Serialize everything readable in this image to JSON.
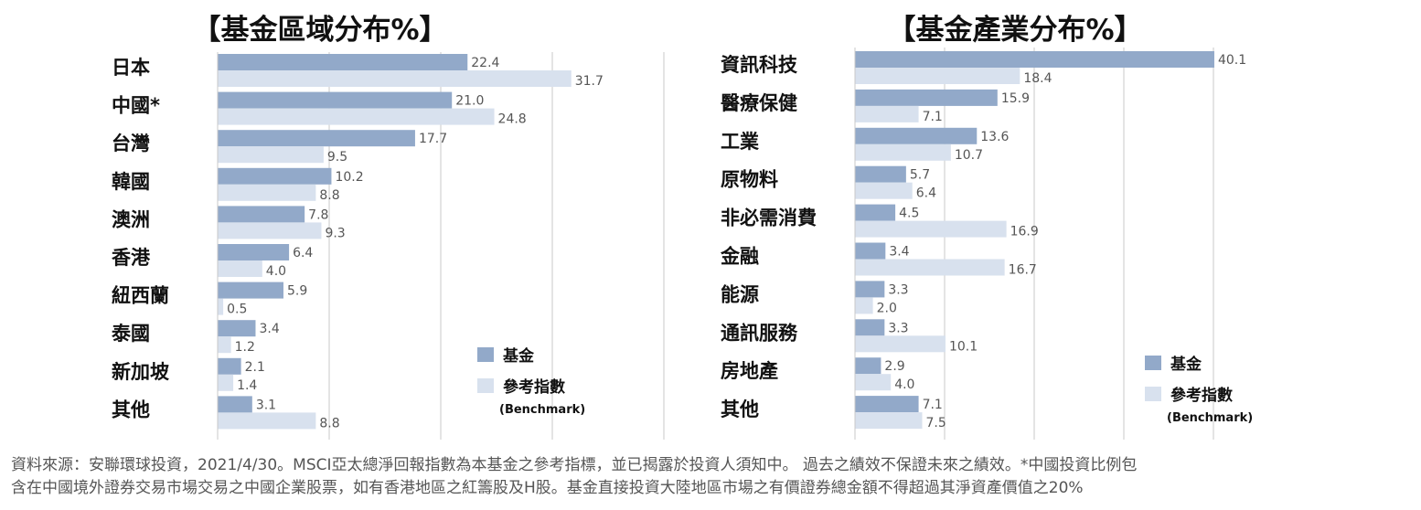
{
  "colors": {
    "fund": "#92a9c9",
    "benchmark": "#d8e1ee",
    "grid": "#c8c8c8",
    "label": "#111111",
    "value": "#555555"
  },
  "legend": {
    "fund": "基金",
    "benchmark": "參考指數",
    "benchmark_sub": "(Benchmark)"
  },
  "chart_data": [
    {
      "type": "bar",
      "orientation": "horizontal",
      "title": "【基金區域分布%】",
      "categories": [
        "日本",
        "中國*",
        "台灣",
        "韓國",
        "澳洲",
        "香港",
        "紐西蘭",
        "泰國",
        "新加坡",
        "其他"
      ],
      "series": [
        {
          "name": "基金",
          "values": [
            22.4,
            21.0,
            17.7,
            10.2,
            7.8,
            6.4,
            5.9,
            3.4,
            2.1,
            3.1
          ]
        },
        {
          "name": "參考指數",
          "values": [
            31.7,
            24.8,
            9.5,
            8.8,
            9.3,
            4.0,
            0.5,
            1.2,
            1.4,
            8.8
          ]
        }
      ],
      "xlim": [
        0,
        40
      ],
      "grid": true,
      "legend_position": "bottom-right"
    },
    {
      "type": "bar",
      "orientation": "horizontal",
      "title": "【基金產業分布%】",
      "categories": [
        "資訊科技",
        "醫療保健",
        "工業",
        "原物料",
        "非必需消費",
        "金融",
        "能源",
        "通訊服務",
        "房地產",
        "其他"
      ],
      "series": [
        {
          "name": "基金",
          "values": [
            40.1,
            15.9,
            13.6,
            5.7,
            4.5,
            3.4,
            3.3,
            3.3,
            2.9,
            7.1
          ]
        },
        {
          "name": "參考指數",
          "values": [
            18.4,
            7.1,
            10.7,
            6.4,
            16.9,
            16.7,
            2.0,
            10.1,
            4.0,
            7.5
          ]
        }
      ],
      "xlim": [
        0,
        40
      ],
      "grid": true,
      "legend_position": "bottom-right"
    }
  ],
  "footnote": {
    "line1": "資料來源：安聯環球投資，2021/4/30。MSCI亞太總淨回報指數為本基金之參考指標，並已揭露於投資人須知中。 過去之績效不保證未來之績效。*中國投資比例包",
    "line2": "含在中國境外證券交易市場交易之中國企業股票，如有香港地區之紅籌股及H股。基金直接投資大陸地區市場之有價證券總金額不得超過其淨資產價值之20%"
  }
}
